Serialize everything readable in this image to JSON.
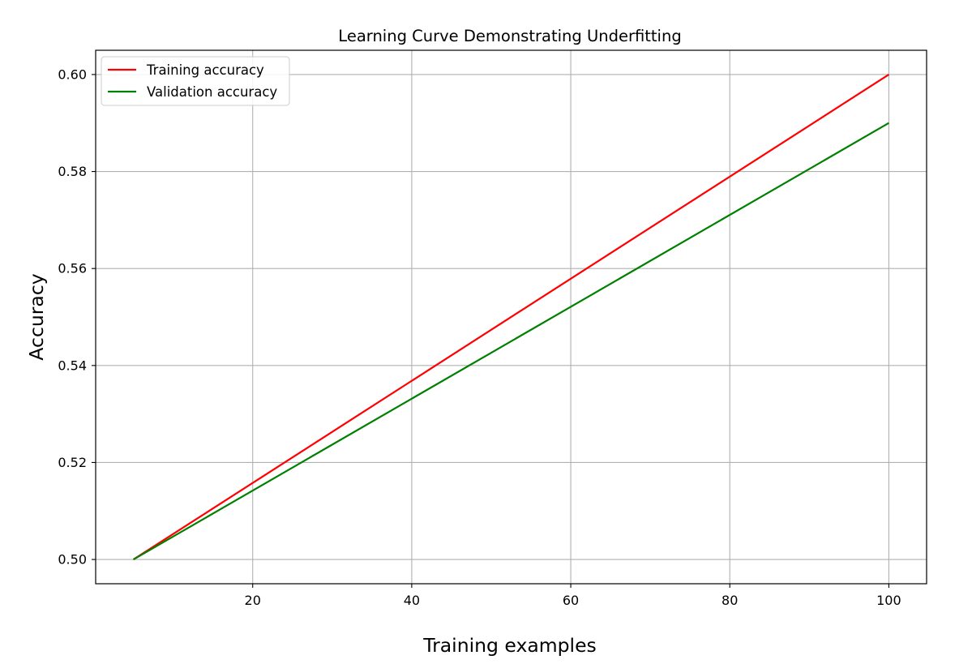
{
  "chart_data": {
    "type": "line",
    "title": "Learning Curve Demonstrating Underfitting",
    "xlabel": "Training examples",
    "ylabel": "Accuracy",
    "xlim": [
      0.25,
      104.75
    ],
    "ylim": [
      0.495,
      0.605
    ],
    "xticks": [
      20,
      40,
      60,
      80,
      100
    ],
    "xtick_labels": [
      "20",
      "40",
      "60",
      "80",
      "100"
    ],
    "yticks": [
      0.5,
      0.52,
      0.54,
      0.56,
      0.58,
      0.6
    ],
    "ytick_labels": [
      "0.50",
      "0.52",
      "0.54",
      "0.56",
      "0.58",
      "0.60"
    ],
    "grid": true,
    "legend_position": "upper left",
    "x": [
      5,
      100
    ],
    "series": [
      {
        "name": "Training accuracy",
        "color": "#ff0000",
        "values": [
          0.5,
          0.6
        ]
      },
      {
        "name": "Validation accuracy",
        "color": "#008000",
        "values": [
          0.5,
          0.59
        ]
      }
    ]
  }
}
